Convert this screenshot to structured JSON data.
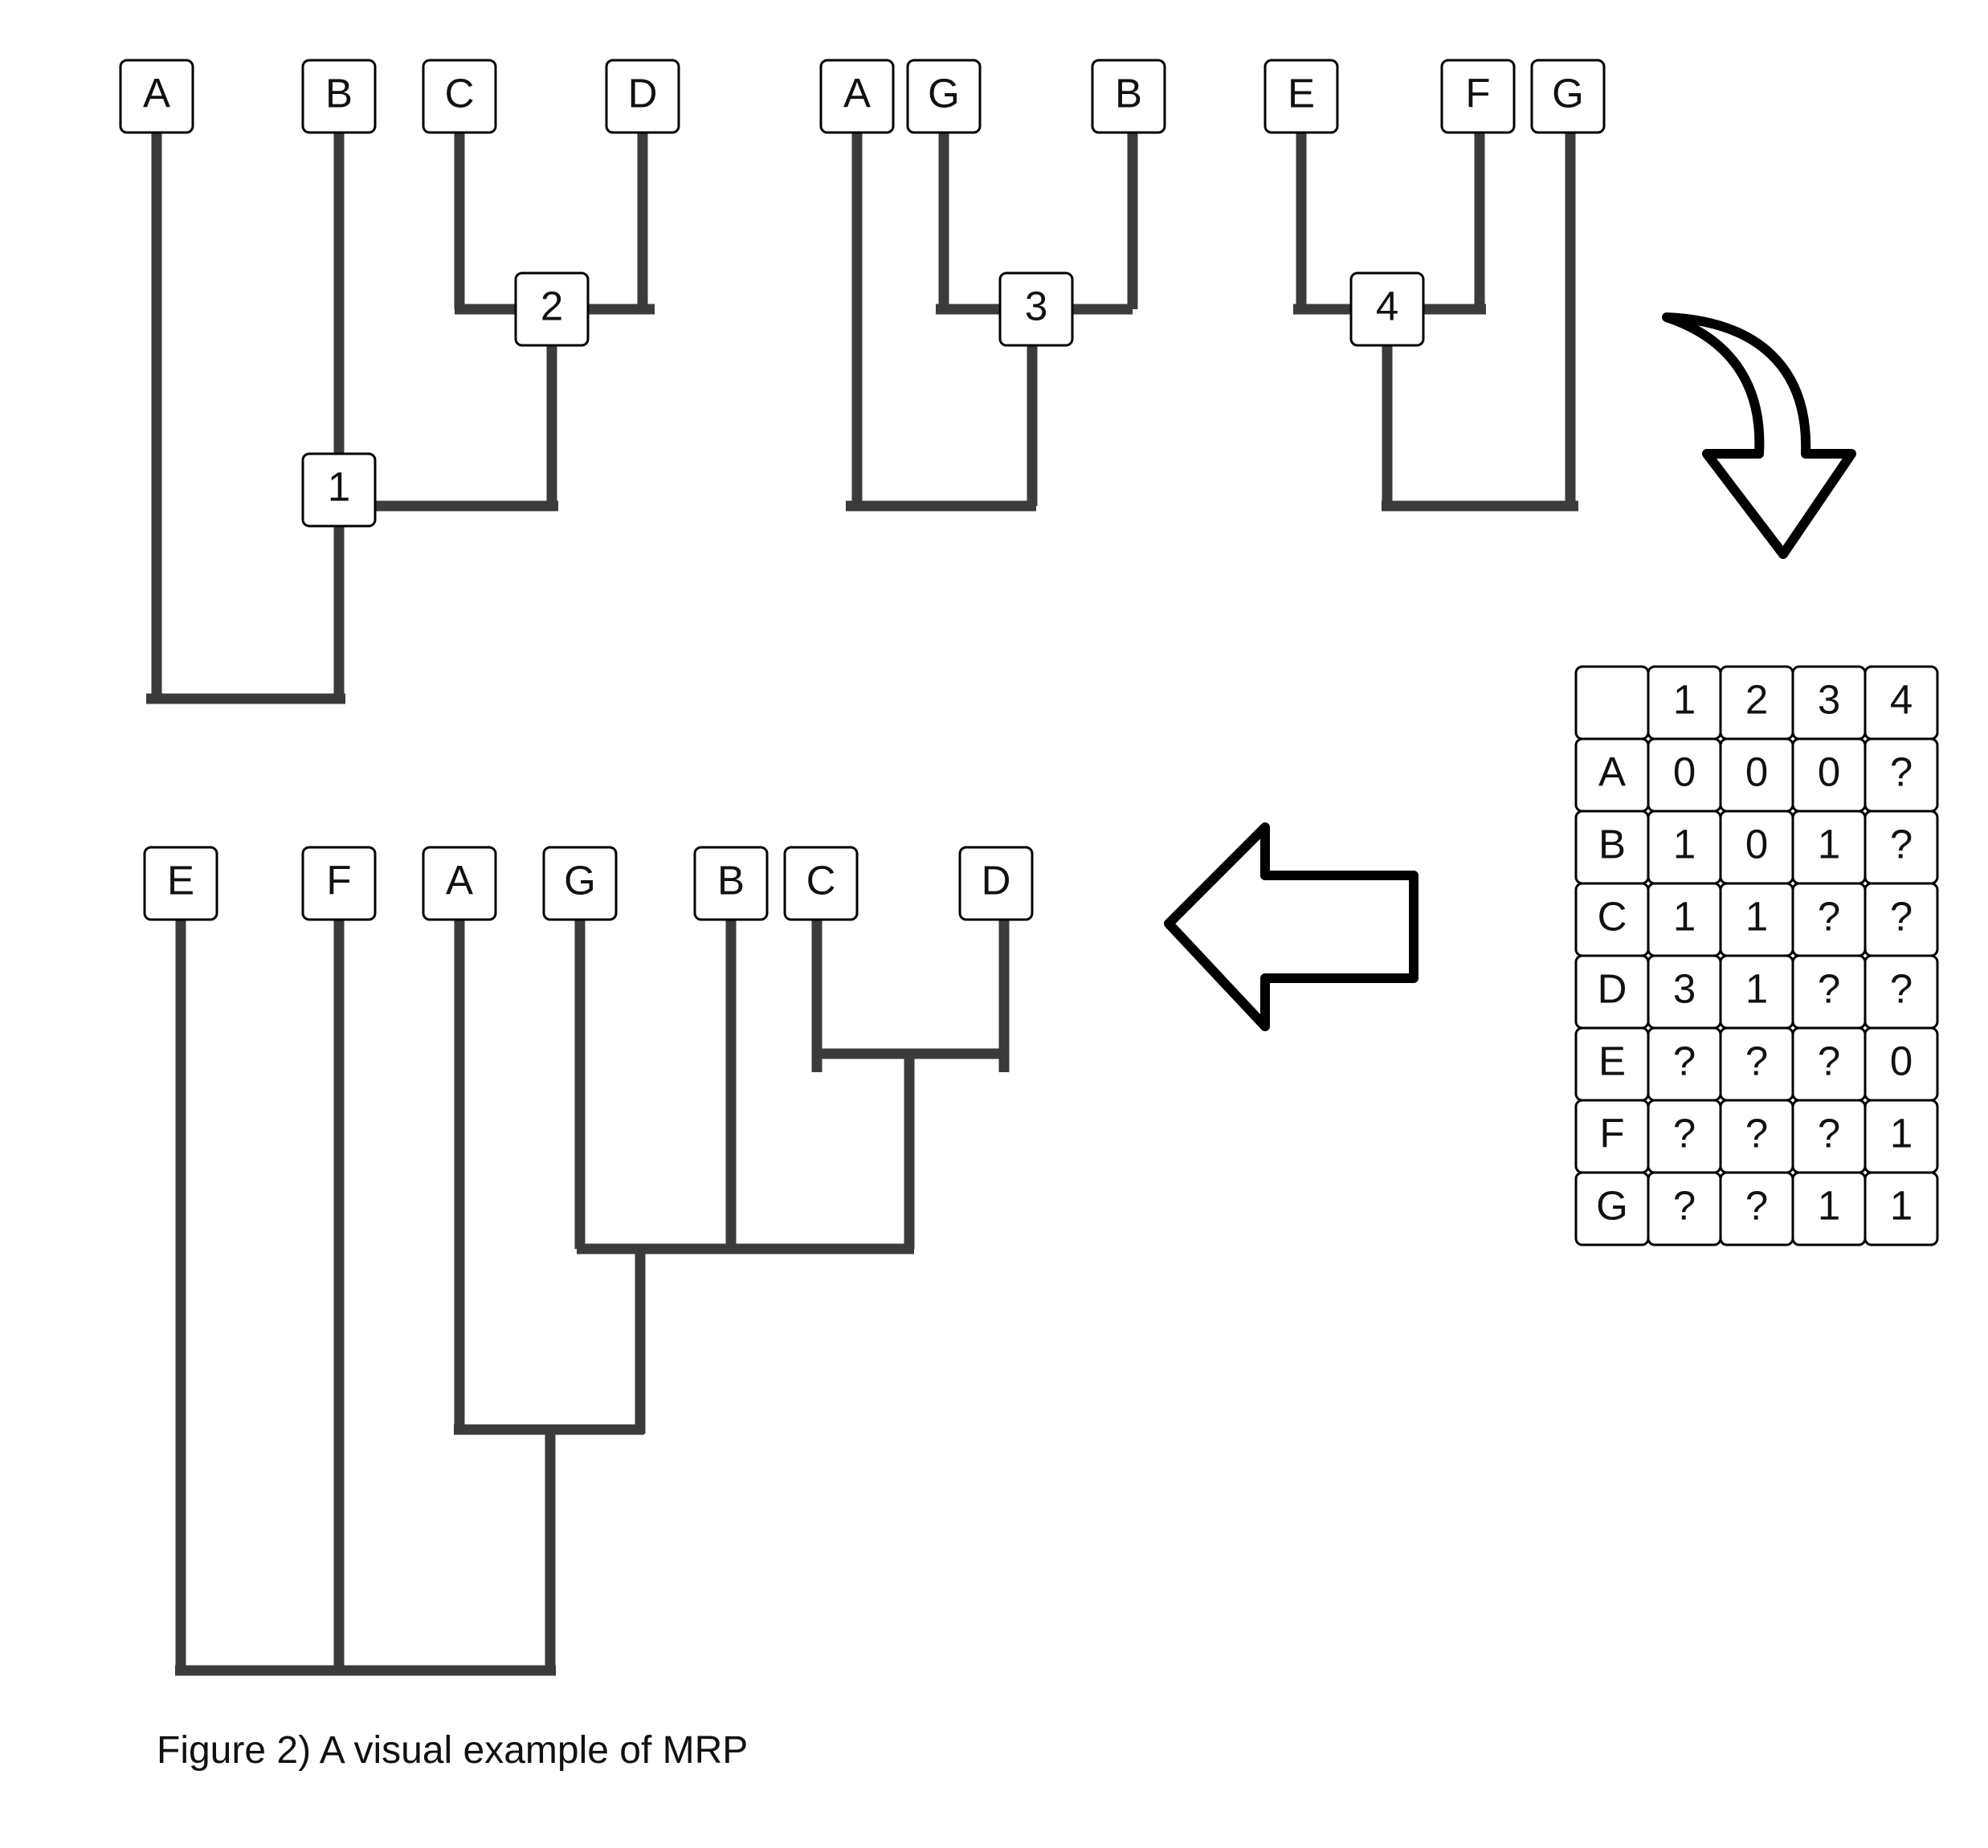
{
  "caption": "Figure 2) A visual example of MRP",
  "input_trees": [
    {
      "id": "tree-1",
      "leaves": [
        "A",
        "B",
        "C",
        "D"
      ],
      "clade_labels": [
        "2",
        "1"
      ]
    },
    {
      "id": "tree-2",
      "leaves": [
        "A",
        "G",
        "B"
      ],
      "clade_labels": [
        "3"
      ]
    },
    {
      "id": "tree-3",
      "leaves": [
        "E",
        "F",
        "G"
      ],
      "clade_labels": [
        "4"
      ]
    }
  ],
  "matrix": {
    "corner": "",
    "columns": [
      "1",
      "2",
      "3",
      "4"
    ],
    "rows": [
      {
        "taxon": "A",
        "values": [
          "0",
          "0",
          "0",
          "?"
        ]
      },
      {
        "taxon": "B",
        "values": [
          "1",
          "0",
          "1",
          "?"
        ]
      },
      {
        "taxon": "C",
        "values": [
          "1",
          "1",
          "?",
          "?"
        ]
      },
      {
        "taxon": "D",
        "values": [
          "3",
          "1",
          "?",
          "?"
        ]
      },
      {
        "taxon": "E",
        "values": [
          "?",
          "?",
          "?",
          "0"
        ]
      },
      {
        "taxon": "F",
        "values": [
          "?",
          "?",
          "?",
          "1"
        ]
      },
      {
        "taxon": "G",
        "values": [
          "?",
          "?",
          "1",
          "1"
        ]
      }
    ]
  },
  "supertree": {
    "leaves": [
      "E",
      "F",
      "A",
      "G",
      "B",
      "C",
      "D"
    ]
  },
  "arrows": {
    "curved": "curved-down-arrow-icon",
    "left": "left-arrow-icon"
  }
}
